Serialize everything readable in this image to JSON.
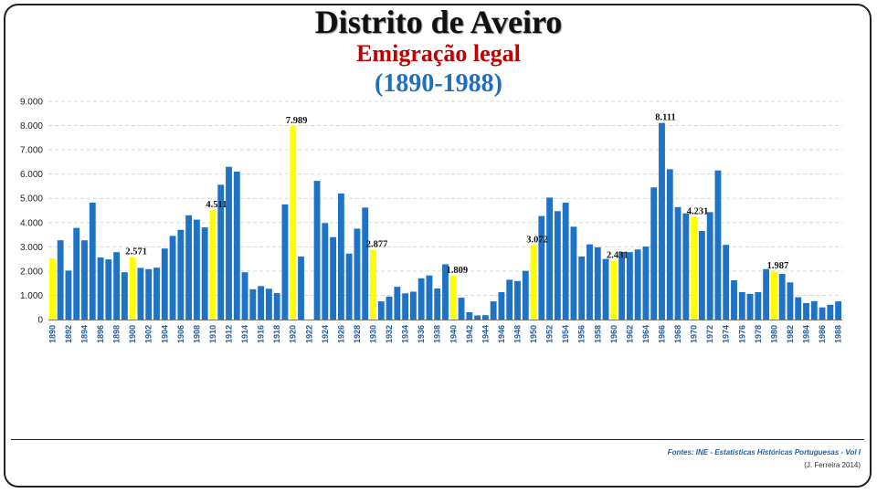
{
  "header": {
    "title": "Distrito de Aveiro",
    "subtitle": "Emigração legal",
    "period": "(1890-1988)"
  },
  "footer": {
    "source": "Fontes: INE - Estatísticas Históricas Portuguesas - Vol I",
    "author": "(J. Ferreira 2014)"
  },
  "colors": {
    "bar": "#1f73c4",
    "highlight": "#ffff00",
    "grid": "#d9d9d9"
  },
  "chart_data": {
    "type": "bar",
    "title": "Distrito de Aveiro",
    "ylim": [
      0,
      9000
    ],
    "yticks": [
      "0",
      "1.000",
      "2.000",
      "3.000",
      "4.000",
      "5.000",
      "6.000",
      "7.000",
      "8.000",
      "9.000"
    ],
    "grid": true,
    "categories": [
      "1890",
      "1891",
      "1892",
      "1893",
      "1894",
      "1895",
      "1896",
      "1897",
      "1898",
      "1899",
      "1900",
      "1901",
      "1902",
      "1903",
      "1904",
      "1905",
      "1906",
      "1907",
      "1908",
      "1909",
      "1910",
      "1911",
      "1912",
      "1913",
      "1914",
      "1915",
      "1916",
      "1917",
      "1918",
      "1919",
      "1920",
      "1921",
      "1922",
      "1923",
      "1924",
      "1925",
      "1926",
      "1927",
      "1928",
      "1929",
      "1930",
      "1931",
      "1932",
      "1933",
      "1934",
      "1935",
      "1936",
      "1937",
      "1938",
      "1939",
      "1940",
      "1941",
      "1942",
      "1943",
      "1944",
      "1945",
      "1946",
      "1947",
      "1948",
      "1949",
      "1950",
      "1951",
      "1952",
      "1953",
      "1954",
      "1955",
      "1956",
      "1957",
      "1958",
      "1959",
      "1960",
      "1961",
      "1962",
      "1963",
      "1964",
      "1965",
      "1966",
      "1967",
      "1968",
      "1969",
      "1970",
      "1971",
      "1972",
      "1973",
      "1974",
      "1975",
      "1976",
      "1977",
      "1978",
      "1979",
      "1980",
      "1981",
      "1982",
      "1983",
      "1984",
      "1985",
      "1986",
      "1987",
      "1988"
    ],
    "tick_labels": [
      "1890",
      "1892",
      "1894",
      "1896",
      "1898",
      "1900",
      "1902",
      "1904",
      "1906",
      "1908",
      "1910",
      "1912",
      "1914",
      "1916",
      "1918",
      "1920",
      "1922",
      "1924",
      "1926",
      "1928",
      "1930",
      "1932",
      "1934",
      "1936",
      "1938",
      "1940",
      "1942",
      "1944",
      "1946",
      "1948",
      "1950",
      "1952",
      "1954",
      "1956",
      "1958",
      "1960",
      "1962",
      "1964",
      "1966",
      "1968",
      "1970",
      "1972",
      "1974",
      "1976",
      "1978",
      "1980",
      "1982",
      "1984",
      "1986",
      "1988"
    ],
    "values": [
      2520,
      3270,
      2020,
      3780,
      3270,
      4820,
      2560,
      2480,
      2780,
      1950,
      2571,
      2130,
      2080,
      2140,
      2930,
      3450,
      3700,
      4300,
      4120,
      3800,
      4511,
      5560,
      6300,
      6100,
      1950,
      1250,
      1380,
      1270,
      1090,
      4750,
      7989,
      2600,
      0,
      5720,
      3980,
      3400,
      5200,
      2720,
      3750,
      4620,
      2877,
      750,
      950,
      1350,
      1080,
      1150,
      1700,
      1820,
      1280,
      2280,
      1809,
      900,
      300,
      170,
      180,
      750,
      1130,
      1640,
      1590,
      2010,
      3072,
      4270,
      5030,
      4470,
      4820,
      3830,
      2600,
      3100,
      2980,
      2500,
      2431,
      2790,
      2780,
      2890,
      3010,
      5450,
      8111,
      6200,
      4640,
      4380,
      4231,
      3650,
      4430,
      6150,
      3080,
      1620,
      1130,
      1060,
      1130,
      2080,
      1987,
      1880,
      1530,
      920,
      680,
      760,
      500,
      610,
      750
    ],
    "highlight_years": [
      "1890",
      "1900",
      "1910",
      "1920",
      "1930",
      "1940",
      "1950",
      "1960",
      "1970",
      "1980"
    ],
    "annotations": [
      {
        "year": "1900",
        "label": "2.571"
      },
      {
        "year": "1910",
        "label": "4.511"
      },
      {
        "year": "1920",
        "label": "7.989"
      },
      {
        "year": "1930",
        "label": "2.877"
      },
      {
        "year": "1940",
        "label": "1.809"
      },
      {
        "year": "1950",
        "label": "3.072"
      },
      {
        "year": "1960",
        "label": "2.431"
      },
      {
        "year": "1966",
        "label": "8.111"
      },
      {
        "year": "1970",
        "label": "4.231"
      },
      {
        "year": "1980",
        "label": "1.987"
      }
    ]
  }
}
